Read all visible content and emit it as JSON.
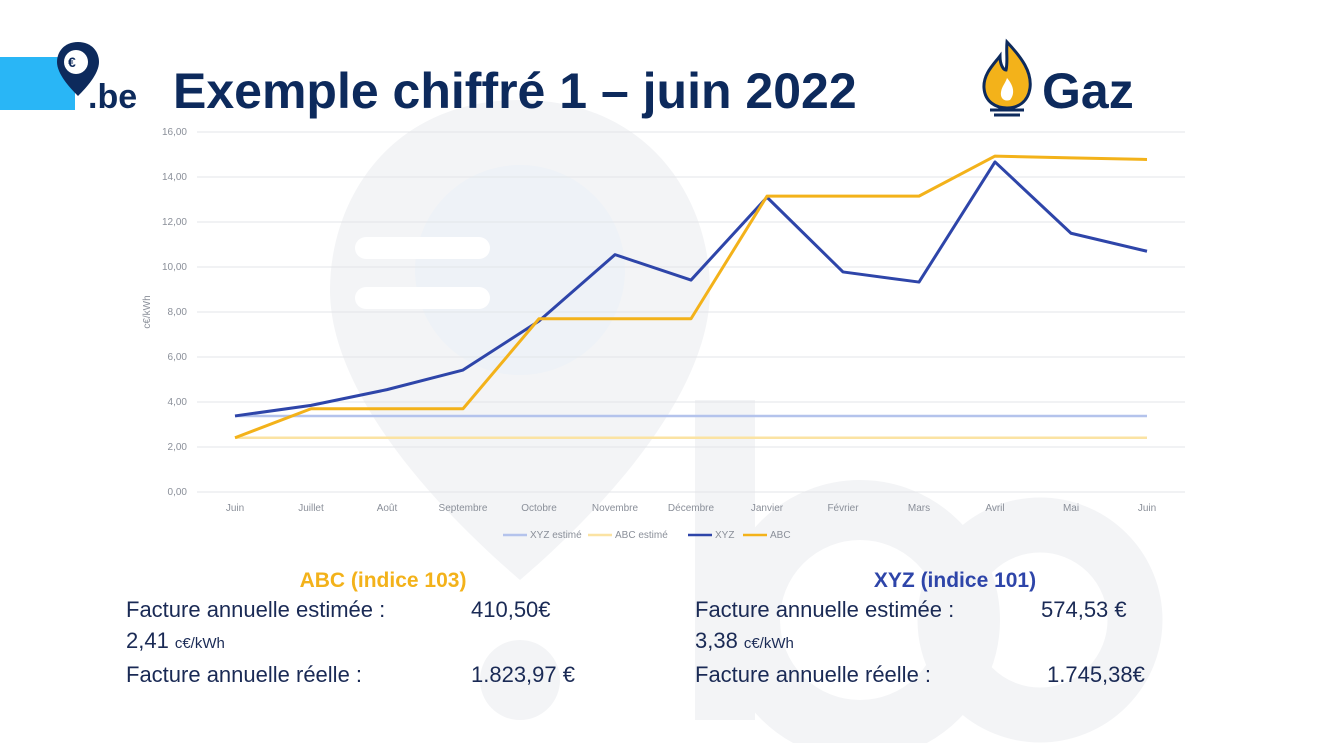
{
  "header": {
    "title": "Exemple chiffré 1 – juin 2022",
    "suffix": "Gaz",
    "logo": ".be"
  },
  "chart_data": {
    "type": "line",
    "y_label": "c€/kWh",
    "categories": [
      "Juin",
      "Juillet",
      "Août",
      "Septembre",
      "Octobre",
      "Novembre",
      "Décembre",
      "Janvier",
      "Février",
      "Mars",
      "Avril",
      "Mai",
      "Juin"
    ],
    "series": [
      {
        "name": "XYZ estimé",
        "color": "#b4c3ec",
        "values": [
          3.38,
          3.38,
          3.38,
          3.38,
          3.38,
          3.38,
          3.38,
          3.38,
          3.38,
          3.38,
          3.38,
          3.38,
          3.38
        ]
      },
      {
        "name": "ABC estimé",
        "color": "#fbe3a3",
        "values": [
          2.41,
          2.41,
          2.41,
          2.41,
          2.41,
          2.41,
          2.41,
          2.41,
          2.41,
          2.41,
          2.41,
          2.41,
          2.41
        ]
      },
      {
        "name": "XYZ",
        "color": "#2e45a9",
        "values": [
          3.38,
          3.85,
          4.55,
          5.42,
          7.6,
          10.55,
          9.42,
          13.1,
          9.78,
          9.33,
          14.67,
          11.5,
          10.7
        ]
      },
      {
        "name": "ABC",
        "color": "#f3b21a",
        "values": [
          2.41,
          3.7,
          3.7,
          3.7,
          7.7,
          7.7,
          7.7,
          13.15,
          13.15,
          13.15,
          14.93,
          14.85,
          14.78
        ]
      }
    ],
    "ylim": [
      0,
      16
    ],
    "yticks": [
      {
        "value": 0,
        "label": "0,00"
      },
      {
        "value": 2,
        "label": "2,00"
      },
      {
        "value": 4,
        "label": "4,00"
      },
      {
        "value": 6,
        "label": "6,00"
      },
      {
        "value": 8,
        "label": "8,00"
      },
      {
        "value": 10,
        "label": "10,00"
      },
      {
        "value": 12,
        "label": "12,00"
      },
      {
        "value": 14,
        "label": "14,00"
      },
      {
        "value": 16,
        "label": "16,00"
      }
    ],
    "grid": true,
    "legend": "bottom"
  },
  "panels": [
    {
      "title": "ABC (indice 103)",
      "color": "#f3b21a",
      "estimate_label": "Facture annuelle estimée :",
      "estimate_value": "410,50€",
      "price": "2,41",
      "price_unit": "c€/kWh",
      "real_label": "Facture annuelle réelle :",
      "real_value": "1.823,97 €"
    },
    {
      "title": "XYZ (indice 101)",
      "color": "#2e45a9",
      "estimate_label": "Facture annuelle estimée :",
      "estimate_value": "574,53 €",
      "price": "3,38",
      "price_unit": "c€/kWh",
      "real_label": "Facture annuelle réelle :",
      "real_value": "1.745,38€"
    }
  ]
}
